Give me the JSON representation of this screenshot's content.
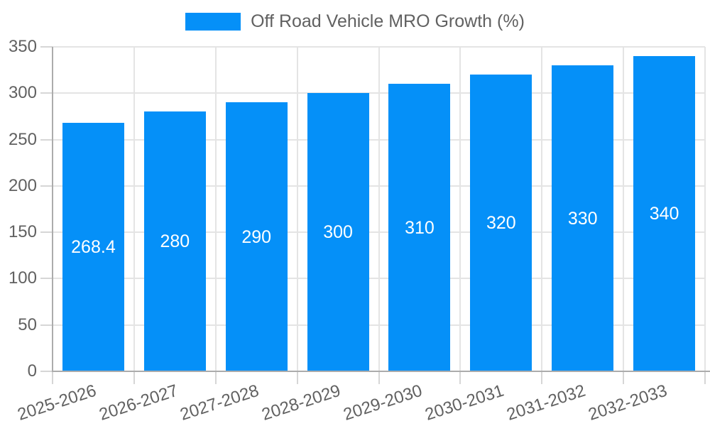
{
  "chart_data": {
    "type": "bar",
    "title": "Off Road Vehicle MRO Growth (%)",
    "legend": {
      "label": "Off Road Vehicle MRO Growth (%)",
      "position": "top-center"
    },
    "categories": [
      "2025-2026",
      "2026-2027",
      "2027-2028",
      "2028-2029",
      "2029-2030",
      "2030-2031",
      "2031-2032",
      "2032-2033"
    ],
    "series": [
      {
        "name": "Off Road Vehicle MRO Growth (%)",
        "values": [
          268.4,
          280,
          290,
          300,
          310,
          320,
          330,
          340
        ]
      }
    ],
    "value_labels": [
      "268.4",
      "280",
      "290",
      "300",
      "310",
      "320",
      "330",
      "340"
    ],
    "xlabel": "",
    "ylabel": "",
    "ylim": [
      0,
      350
    ],
    "ytick_step": 50,
    "yticks": [
      0,
      50,
      100,
      150,
      200,
      250,
      300,
      350
    ],
    "grid": true,
    "x_label_rotation_deg": -18,
    "colors": {
      "bar": "#0590F8",
      "value_label": "#FFFFFF",
      "axis_line": "#ACACAC",
      "gridline": "#E4E4E4",
      "tick": "#D6D6D6",
      "text": "#616161",
      "background": "#FFFFFF"
    }
  }
}
